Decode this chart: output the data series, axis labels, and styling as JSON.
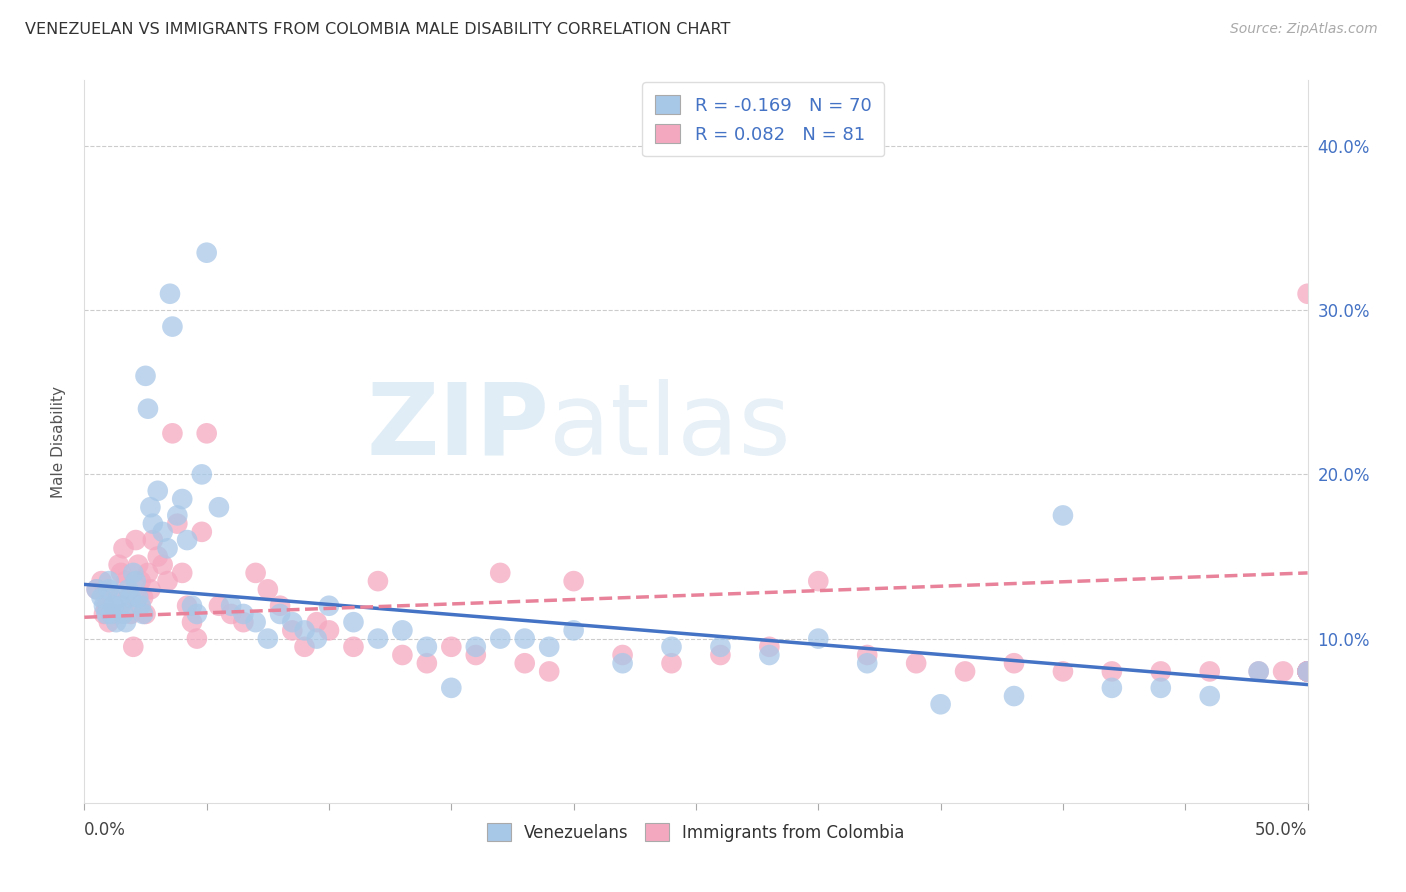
{
  "title": "VENEZUELAN VS IMMIGRANTS FROM COLOMBIA MALE DISABILITY CORRELATION CHART",
  "source": "Source: ZipAtlas.com",
  "ylabel": "Male Disability",
  "xlim": [
    0.0,
    0.5
  ],
  "ylim": [
    0.0,
    0.44
  ],
  "legend_venezuelans_R": "-0.169",
  "legend_venezuelans_N": "70",
  "legend_colombia_R": "0.082",
  "legend_colombia_N": "81",
  "watermark_zip": "ZIP",
  "watermark_atlas": "atlas",
  "venezuelan_color": "#a8c8e8",
  "colombian_color": "#f4a8c0",
  "venezuelan_line_color": "#4472c4",
  "colombian_line_color": "#e8829a",
  "venezuelan_x": [
    0.005,
    0.007,
    0.008,
    0.009,
    0.01,
    0.01,
    0.011,
    0.012,
    0.013,
    0.014,
    0.015,
    0.016,
    0.017,
    0.018,
    0.019,
    0.02,
    0.021,
    0.022,
    0.023,
    0.024,
    0.025,
    0.026,
    0.027,
    0.028,
    0.03,
    0.032,
    0.034,
    0.035,
    0.036,
    0.038,
    0.04,
    0.042,
    0.044,
    0.046,
    0.048,
    0.05,
    0.055,
    0.06,
    0.065,
    0.07,
    0.075,
    0.08,
    0.085,
    0.09,
    0.095,
    0.1,
    0.11,
    0.12,
    0.13,
    0.14,
    0.15,
    0.16,
    0.17,
    0.18,
    0.19,
    0.2,
    0.22,
    0.24,
    0.26,
    0.28,
    0.3,
    0.32,
    0.35,
    0.38,
    0.4,
    0.42,
    0.44,
    0.46,
    0.48,
    0.5
  ],
  "venezuelan_y": [
    0.13,
    0.125,
    0.12,
    0.115,
    0.13,
    0.135,
    0.115,
    0.12,
    0.11,
    0.125,
    0.12,
    0.115,
    0.11,
    0.13,
    0.125,
    0.14,
    0.135,
    0.125,
    0.12,
    0.115,
    0.26,
    0.24,
    0.18,
    0.17,
    0.19,
    0.165,
    0.155,
    0.31,
    0.29,
    0.175,
    0.185,
    0.16,
    0.12,
    0.115,
    0.2,
    0.335,
    0.18,
    0.12,
    0.115,
    0.11,
    0.1,
    0.115,
    0.11,
    0.105,
    0.1,
    0.12,
    0.11,
    0.1,
    0.105,
    0.095,
    0.07,
    0.095,
    0.1,
    0.1,
    0.095,
    0.105,
    0.085,
    0.095,
    0.095,
    0.09,
    0.1,
    0.085,
    0.06,
    0.065,
    0.175,
    0.07,
    0.07,
    0.065,
    0.08,
    0.08
  ],
  "colombian_x": [
    0.005,
    0.007,
    0.008,
    0.009,
    0.01,
    0.011,
    0.012,
    0.013,
    0.014,
    0.015,
    0.016,
    0.017,
    0.018,
    0.019,
    0.02,
    0.021,
    0.022,
    0.023,
    0.024,
    0.025,
    0.026,
    0.027,
    0.028,
    0.03,
    0.032,
    0.034,
    0.036,
    0.038,
    0.04,
    0.042,
    0.044,
    0.046,
    0.048,
    0.05,
    0.055,
    0.06,
    0.065,
    0.07,
    0.075,
    0.08,
    0.085,
    0.09,
    0.095,
    0.1,
    0.11,
    0.12,
    0.13,
    0.14,
    0.15,
    0.16,
    0.17,
    0.18,
    0.19,
    0.2,
    0.22,
    0.24,
    0.26,
    0.28,
    0.3,
    0.32,
    0.34,
    0.36,
    0.38,
    0.4,
    0.42,
    0.44,
    0.46,
    0.48,
    0.49,
    0.5,
    0.5,
    0.5,
    0.5,
    0.5,
    0.5,
    0.5,
    0.5,
    0.5,
    0.5,
    0.5,
    0.5
  ],
  "colombian_y": [
    0.13,
    0.135,
    0.115,
    0.12,
    0.11,
    0.125,
    0.12,
    0.115,
    0.145,
    0.14,
    0.155,
    0.135,
    0.125,
    0.115,
    0.095,
    0.16,
    0.145,
    0.135,
    0.125,
    0.115,
    0.14,
    0.13,
    0.16,
    0.15,
    0.145,
    0.135,
    0.225,
    0.17,
    0.14,
    0.12,
    0.11,
    0.1,
    0.165,
    0.225,
    0.12,
    0.115,
    0.11,
    0.14,
    0.13,
    0.12,
    0.105,
    0.095,
    0.11,
    0.105,
    0.095,
    0.135,
    0.09,
    0.085,
    0.095,
    0.09,
    0.14,
    0.085,
    0.08,
    0.135,
    0.09,
    0.085,
    0.09,
    0.095,
    0.135,
    0.09,
    0.085,
    0.08,
    0.085,
    0.08,
    0.08,
    0.08,
    0.08,
    0.08,
    0.08,
    0.31,
    0.08,
    0.08,
    0.08,
    0.08,
    0.08,
    0.08,
    0.08,
    0.08,
    0.08,
    0.08,
    0.08
  ],
  "ven_line_x": [
    0.0,
    0.5
  ],
  "ven_line_y": [
    0.133,
    0.072
  ],
  "col_line_x": [
    0.0,
    0.5
  ],
  "col_line_y": [
    0.113,
    0.14
  ]
}
